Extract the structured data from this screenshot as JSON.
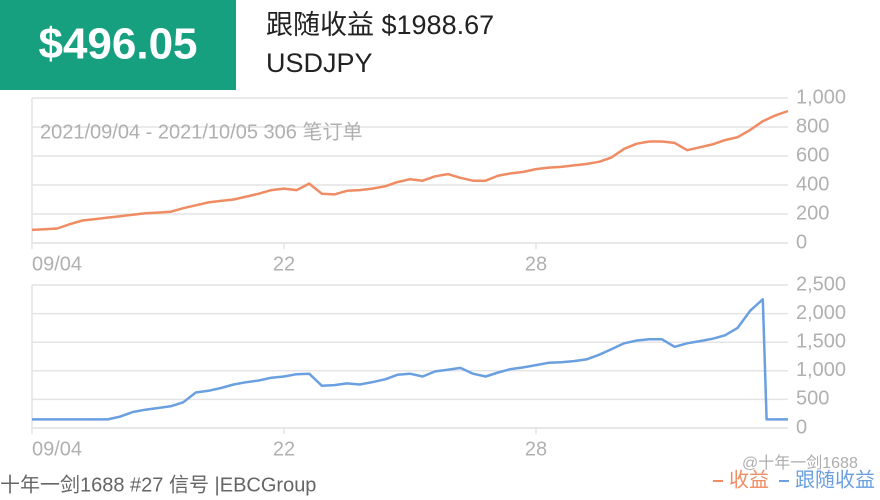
{
  "header": {
    "badge": "$496.05",
    "title": "跟随收益 $1988.67",
    "symbol": "USDJPY"
  },
  "footer": {
    "text": "十年一剑1688 #27 信号 |EBCGroup",
    "watermark": "@十年一剑1688"
  },
  "chart_data": [
    {
      "type": "line",
      "subtitle": "2021/09/04 - 2021/10/05 306 笔订单",
      "x": [
        0,
        1,
        2,
        3,
        4,
        5,
        6,
        7,
        8,
        9,
        10,
        11,
        12,
        13,
        14,
        15,
        16,
        17,
        18,
        19,
        20,
        21,
        22,
        23,
        24,
        25,
        26,
        27,
        28,
        29,
        30,
        31,
        32,
        33,
        34,
        35,
        36,
        37,
        38,
        39,
        40,
        41,
        42,
        43,
        44,
        45,
        46,
        47,
        48,
        49,
        50,
        51,
        52,
        53,
        54,
        55,
        56,
        57,
        58,
        59,
        60
      ],
      "xlim": [
        0,
        60
      ],
      "xticks": [
        {
          "value": 0,
          "label": "09/04"
        },
        {
          "value": 20,
          "label": "22"
        },
        {
          "value": 40,
          "label": "28"
        }
      ],
      "ylim": [
        0,
        1000
      ],
      "yticks": [
        0,
        200,
        400,
        600,
        800,
        {
          "value": 1000,
          "label": "1,000"
        }
      ],
      "grid": true,
      "series": [
        {
          "name": "收益",
          "color": "#ef8c63",
          "values": [
            90,
            95,
            100,
            130,
            155,
            165,
            175,
            185,
            195,
            205,
            210,
            215,
            240,
            260,
            280,
            290,
            300,
            320,
            340,
            365,
            375,
            365,
            410,
            340,
            335,
            360,
            365,
            375,
            390,
            420,
            440,
            430,
            460,
            475,
            450,
            430,
            430,
            465,
            480,
            490,
            510,
            520,
            525,
            535,
            545,
            560,
            590,
            650,
            685,
            700,
            700,
            690,
            640,
            660,
            680,
            710,
            730,
            780,
            840,
            880,
            910
          ]
        }
      ]
    },
    {
      "type": "line",
      "x": [
        0,
        1,
        2,
        3,
        4,
        5,
        6,
        7,
        8,
        9,
        10,
        11,
        12,
        13,
        14,
        15,
        16,
        17,
        18,
        19,
        20,
        21,
        22,
        23,
        24,
        25,
        26,
        27,
        28,
        29,
        30,
        31,
        32,
        33,
        34,
        35,
        36,
        37,
        38,
        39,
        40,
        41,
        42,
        43,
        44,
        45,
        46,
        47,
        48,
        49,
        50,
        51,
        52,
        53,
        54,
        55,
        56,
        57,
        58,
        58.3,
        59,
        60
      ],
      "xlim": [
        0,
        60
      ],
      "xticks": [
        {
          "value": 0,
          "label": "09/04"
        },
        {
          "value": 20,
          "label": "22"
        },
        {
          "value": 40,
          "label": "28"
        }
      ],
      "ylim": [
        0,
        2500
      ],
      "yticks": [
        0,
        500,
        {
          "value": 1000,
          "label": "1,000"
        },
        {
          "value": 1500,
          "label": "1,500"
        },
        {
          "value": 2000,
          "label": "2,000"
        },
        {
          "value": 2500,
          "label": "2,500"
        }
      ],
      "grid": true,
      "series": [
        {
          "name": "跟随收益",
          "color": "#6a9fe0",
          "values": [
            150,
            150,
            150,
            150,
            150,
            150,
            150,
            200,
            280,
            320,
            350,
            380,
            450,
            620,
            650,
            700,
            760,
            800,
            830,
            880,
            900,
            940,
            950,
            740,
            750,
            780,
            760,
            800,
            850,
            930,
            950,
            900,
            990,
            1020,
            1050,
            950,
            900,
            970,
            1030,
            1060,
            1100,
            1140,
            1150,
            1170,
            1200,
            1280,
            1380,
            1480,
            1530,
            1550,
            1550,
            1420,
            1480,
            1520,
            1560,
            1620,
            1750,
            2050,
            2250,
            150,
            150,
            150
          ]
        }
      ]
    }
  ]
}
